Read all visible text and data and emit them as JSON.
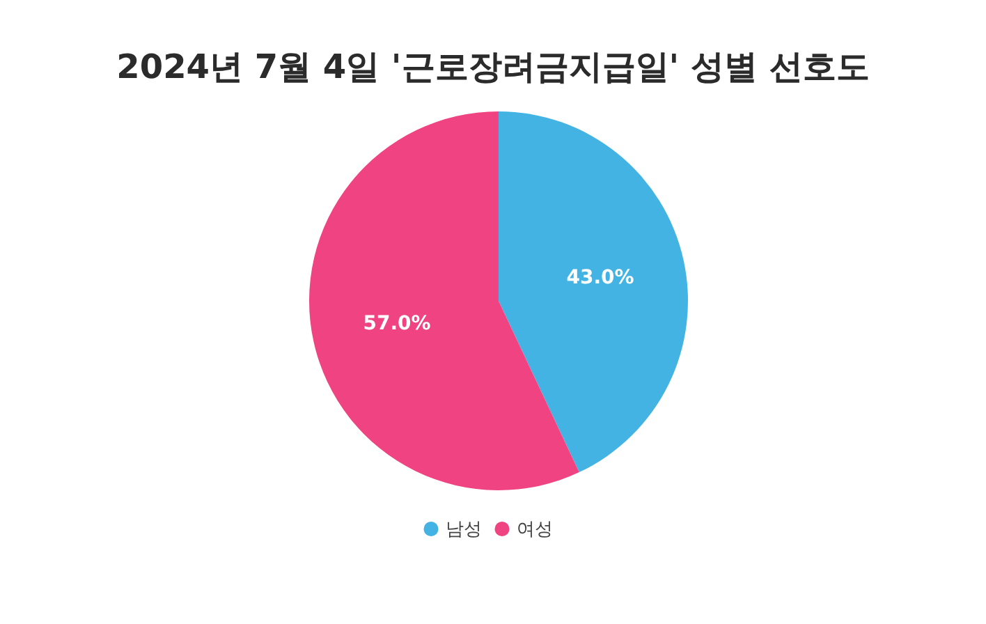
{
  "chart_data": {
    "type": "pie",
    "title": "2024년 7월 4일 '근로장려금지급일' 성별 선호도",
    "categories": [
      "남성",
      "여성"
    ],
    "values": [
      43,
      57
    ],
    "colors": [
      "#42b3e3",
      "#f04381"
    ],
    "value_labels": [
      "43.0%",
      "57.0%"
    ],
    "legend": "bottom"
  }
}
